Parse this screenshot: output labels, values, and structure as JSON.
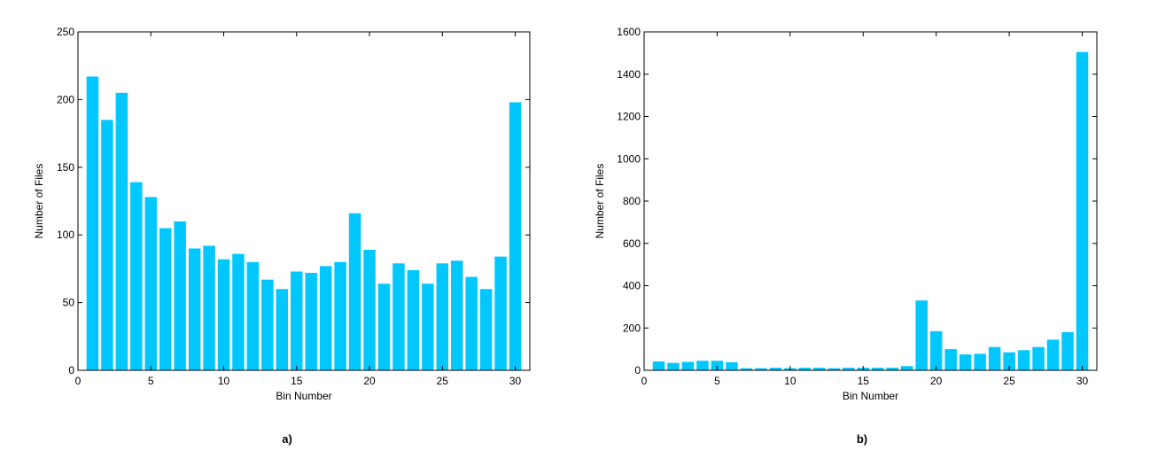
{
  "chart_data": [
    {
      "type": "bar",
      "caption": "a)",
      "xlabel": "Bin Number",
      "ylabel": "Number of Files",
      "xlim": [
        0,
        31
      ],
      "ylim": [
        0,
        250
      ],
      "xticks": [
        0,
        5,
        10,
        15,
        20,
        25,
        30
      ],
      "yticks": [
        0,
        50,
        100,
        150,
        200,
        250
      ],
      "bar_color": "#00C8FF",
      "grid": false,
      "x": [
        1,
        2,
        3,
        4,
        5,
        6,
        7,
        8,
        9,
        10,
        11,
        12,
        13,
        14,
        15,
        16,
        17,
        18,
        19,
        20,
        21,
        22,
        23,
        24,
        25,
        26,
        27,
        28,
        29,
        30
      ],
      "values": [
        217,
        185,
        205,
        139,
        128,
        105,
        110,
        90,
        92,
        82,
        86,
        80,
        67,
        60,
        73,
        72,
        77,
        80,
        116,
        89,
        64,
        79,
        74,
        64,
        79,
        81,
        69,
        60,
        84,
        198
      ]
    },
    {
      "type": "bar",
      "caption": "b)",
      "xlabel": "Bin Number",
      "ylabel": "Number of Files",
      "xlim": [
        0,
        31
      ],
      "ylim": [
        0,
        1600
      ],
      "xticks": [
        0,
        5,
        10,
        15,
        20,
        25,
        30
      ],
      "yticks": [
        0,
        200,
        400,
        600,
        800,
        1000,
        1200,
        1400,
        1600
      ],
      "bar_color": "#00C8FF",
      "grid": false,
      "x": [
        1,
        2,
        3,
        4,
        5,
        6,
        7,
        8,
        9,
        10,
        11,
        12,
        13,
        14,
        15,
        16,
        17,
        18,
        19,
        20,
        21,
        22,
        23,
        24,
        25,
        26,
        27,
        28,
        29,
        30
      ],
      "values": [
        42,
        35,
        40,
        45,
        45,
        38,
        10,
        10,
        12,
        10,
        12,
        12,
        10,
        12,
        12,
        12,
        12,
        20,
        330,
        185,
        100,
        75,
        78,
        110,
        85,
        95,
        110,
        145,
        180,
        1505
      ]
    }
  ]
}
